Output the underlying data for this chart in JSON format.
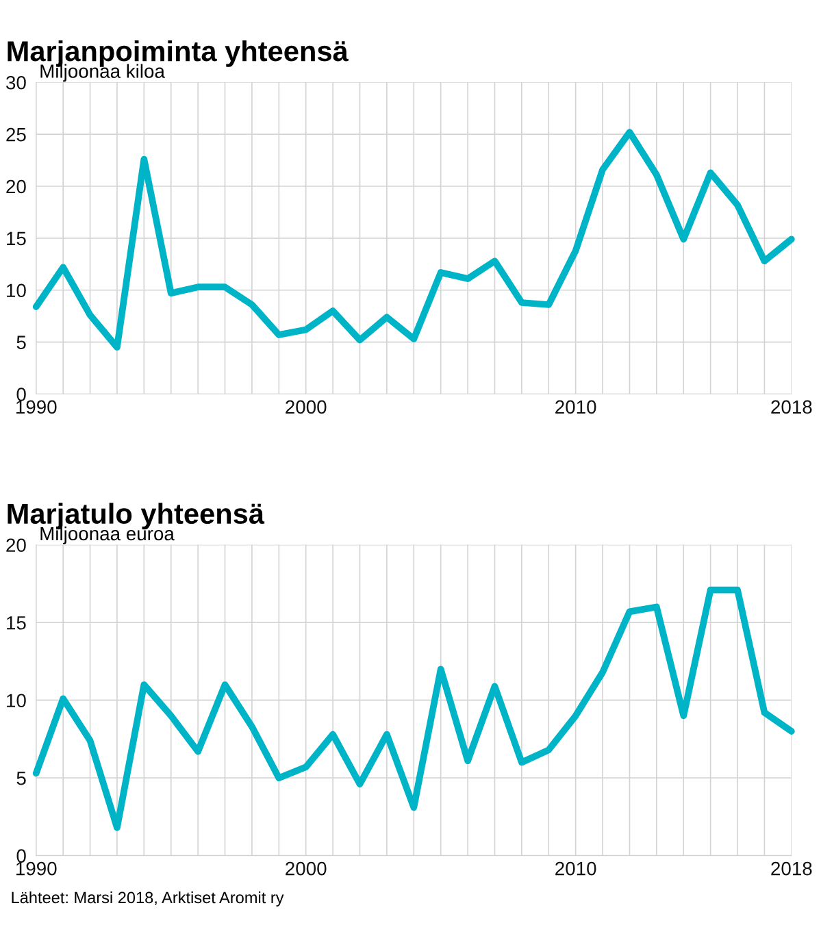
{
  "chart_data": [
    {
      "type": "line",
      "title": "Marjanpoiminta yhteensä",
      "ylabel": "Miljoonaa kiloa",
      "x": [
        1990,
        1991,
        1992,
        1993,
        1994,
        1995,
        1996,
        1997,
        1998,
        1999,
        2000,
        2001,
        2002,
        2003,
        2004,
        2005,
        2006,
        2007,
        2008,
        2009,
        2010,
        2011,
        2012,
        2013,
        2014,
        2015,
        2016,
        2017,
        2018
      ],
      "series": [
        {
          "color": "#00b4c8",
          "values": [
            8.4,
            12.2,
            7.6,
            4.5,
            22.6,
            9.7,
            10.3,
            10.3,
            8.6,
            5.7,
            6.2,
            8.0,
            5.2,
            7.4,
            5.3,
            11.7,
            11.1,
            12.8,
            8.8,
            8.6,
            13.8,
            21.6,
            25.2,
            21.1,
            14.9,
            21.3,
            18.2,
            12.8,
            14.9
          ]
        }
      ],
      "xlim": [
        1990,
        2018
      ],
      "ylim": [
        0,
        30
      ],
      "yticks": [
        0,
        5,
        10,
        15,
        20,
        25,
        30
      ],
      "xticks": [
        1990,
        {
          "value": 1991,
          "label": null
        },
        {
          "value": 1992,
          "label": null
        },
        {
          "value": 1993,
          "label": null
        },
        {
          "value": 1994,
          "label": null
        },
        {
          "value": 1995,
          "label": null
        },
        {
          "value": 1996,
          "label": null
        },
        {
          "value": 1997,
          "label": null
        },
        {
          "value": 1998,
          "label": null
        },
        {
          "value": 1999,
          "label": null
        },
        2000,
        {
          "value": 2001,
          "label": null
        },
        {
          "value": 2002,
          "label": null
        },
        {
          "value": 2003,
          "label": null
        },
        {
          "value": 2004,
          "label": null
        },
        {
          "value": 2005,
          "label": null
        },
        {
          "value": 2006,
          "label": null
        },
        {
          "value": 2007,
          "label": null
        },
        {
          "value": 2008,
          "label": null
        },
        {
          "value": 2009,
          "label": null
        },
        2010,
        {
          "value": 2011,
          "label": null
        },
        {
          "value": 2012,
          "label": null
        },
        {
          "value": 2013,
          "label": null
        },
        {
          "value": 2014,
          "label": null
        },
        {
          "value": 2015,
          "label": null
        },
        {
          "value": 2016,
          "label": null
        },
        {
          "value": 2017,
          "label": null
        },
        2018
      ],
      "grid": true,
      "legend": false
    },
    {
      "type": "line",
      "title": "Marjatulo yhteensä",
      "ylabel": "Miljoonaa euroa",
      "x": [
        1990,
        1991,
        1992,
        1993,
        1994,
        1995,
        1996,
        1997,
        1998,
        1999,
        2000,
        2001,
        2002,
        2003,
        2004,
        2005,
        2006,
        2007,
        2008,
        2009,
        2010,
        2011,
        2012,
        2013,
        2014,
        2015,
        2016,
        2017,
        2018
      ],
      "series": [
        {
          "color": "#00b4c8",
          "values": [
            5.3,
            10.1,
            7.4,
            1.8,
            11.0,
            9.0,
            6.7,
            11.0,
            8.3,
            5.0,
            5.7,
            7.8,
            4.6,
            7.8,
            3.1,
            12.0,
            6.1,
            10.9,
            6.0,
            6.8,
            9.0,
            11.8,
            15.7,
            16.0,
            9.0,
            17.1,
            17.1,
            9.2,
            8.0
          ]
        }
      ],
      "xlim": [
        1990,
        2018
      ],
      "ylim": [
        0,
        20
      ],
      "yticks": [
        0,
        5,
        10,
        15,
        20
      ],
      "xticks": [
        1990,
        {
          "value": 1991,
          "label": null
        },
        {
          "value": 1992,
          "label": null
        },
        {
          "value": 1993,
          "label": null
        },
        {
          "value": 1994,
          "label": null
        },
        {
          "value": 1995,
          "label": null
        },
        {
          "value": 1996,
          "label": null
        },
        {
          "value": 1997,
          "label": null
        },
        {
          "value": 1998,
          "label": null
        },
        {
          "value": 1999,
          "label": null
        },
        2000,
        {
          "value": 2001,
          "label": null
        },
        {
          "value": 2002,
          "label": null
        },
        {
          "value": 2003,
          "label": null
        },
        {
          "value": 2004,
          "label": null
        },
        {
          "value": 2005,
          "label": null
        },
        {
          "value": 2006,
          "label": null
        },
        {
          "value": 2007,
          "label": null
        },
        {
          "value": 2008,
          "label": null
        },
        {
          "value": 2009,
          "label": null
        },
        2010,
        {
          "value": 2011,
          "label": null
        },
        {
          "value": 2012,
          "label": null
        },
        {
          "value": 2013,
          "label": null
        },
        {
          "value": 2014,
          "label": null
        },
        {
          "value": 2015,
          "label": null
        },
        {
          "value": 2016,
          "label": null
        },
        {
          "value": 2017,
          "label": null
        },
        2018
      ],
      "grid": true,
      "legend": false,
      "annotations": [
        "Lähteet: Marsi 2018, Arktiset Aromit ry"
      ]
    }
  ]
}
